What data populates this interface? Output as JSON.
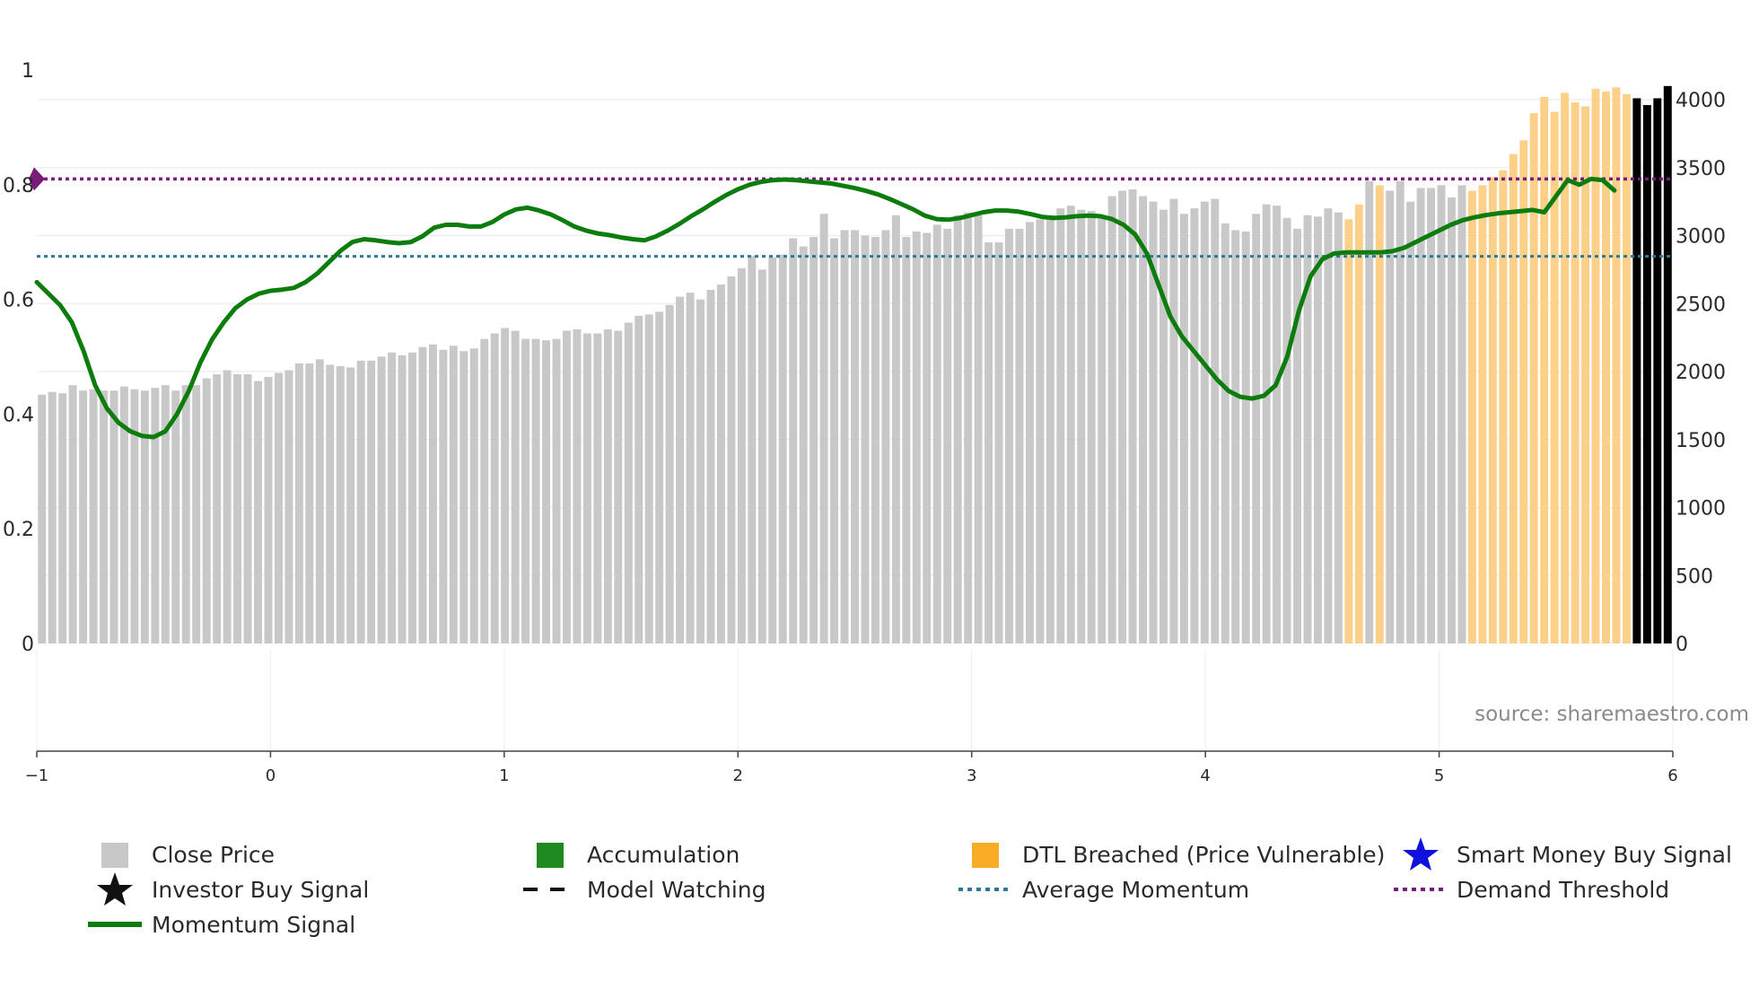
{
  "chart_data": {
    "type": "bar+line",
    "source_label": "source: sharemaestro.com",
    "left_axis": {
      "range": [
        0,
        1
      ],
      "ticks": [
        0,
        0.2,
        0.4,
        0.6,
        0.8,
        1
      ],
      "tick_labels": [
        "0",
        "0.2",
        "0.4",
        "0.6",
        "0.8",
        "1"
      ]
    },
    "right_axis": {
      "range": [
        0,
        4000
      ],
      "ticks": [
        0,
        500,
        1000,
        1500,
        2000,
        2500,
        3000,
        3500,
        4000
      ],
      "tick_labels": [
        "0",
        "500",
        "1000",
        "1500",
        "2000",
        "2500",
        "3000",
        "3500",
        "4000"
      ]
    },
    "x_axis": {
      "range": [
        -1,
        6
      ],
      "ticks": [
        -1,
        0,
        1,
        2,
        3,
        4,
        5,
        6
      ],
      "tick_labels": [
        "−1",
        "0",
        "1",
        "2",
        "3",
        "4",
        "5",
        "6"
      ]
    },
    "demand_threshold": 0.81,
    "average_momentum": 0.675,
    "close_price_start_index": 0,
    "close_price": [
      1830,
      1850,
      1840,
      1900,
      1860,
      1870,
      1860,
      1860,
      1890,
      1870,
      1860,
      1880,
      1900,
      1860,
      1900,
      1900,
      1950,
      1980,
      2010,
      1980,
      1980,
      1930,
      1960,
      1990,
      2010,
      2060,
      2060,
      2090,
      2050,
      2040,
      2030,
      2080,
      2080,
      2110,
      2140,
      2120,
      2140,
      2180,
      2200,
      2160,
      2190,
      2150,
      2170,
      2240,
      2280,
      2320,
      2300,
      2240,
      2240,
      2230,
      2240,
      2300,
      2310,
      2280,
      2280,
      2310,
      2300,
      2360,
      2410,
      2420,
      2440,
      2490,
      2550,
      2580,
      2530,
      2600,
      2640,
      2700,
      2760,
      2850,
      2750,
      2840,
      2860,
      2980,
      2920,
      2990,
      3160,
      2980,
      3040,
      3040,
      3000,
      2990,
      3040,
      3150,
      2990,
      3030,
      3020,
      3080,
      3050,
      3150,
      3170,
      3150,
      2950,
      2950,
      3050,
      3050,
      3100,
      3120,
      3150,
      3200,
      3220,
      3190,
      3180,
      3150,
      3290,
      3330,
      3340,
      3290,
      3250,
      3190,
      3270,
      3160,
      3200,
      3250,
      3270,
      3090,
      3040,
      3030,
      3160,
      3230,
      3220,
      3130,
      3050,
      3150,
      3140,
      3200,
      3170,
      3120,
      3230,
      3400,
      3370,
      3330,
      3400,
      3250,
      3350,
      3350,
      3370,
      3280,
      3370,
      3330,
      3370,
      3430,
      3480,
      3600,
      3700,
      3900,
      4020,
      3910,
      4050,
      3980,
      3950,
      4080,
      4060,
      4090,
      4040,
      4010,
      3960,
      4010,
      4100
    ],
    "close_price_colors": [
      "#c8c8c8",
      "#c8c8c8",
      "#c8c8c8",
      "#c8c8c8",
      "#c8c8c8",
      "#c8c8c8",
      "#c8c8c8",
      "#c8c8c8",
      "#c8c8c8",
      "#c8c8c8",
      "#c8c8c8",
      "#c8c8c8",
      "#c8c8c8",
      "#c8c8c8",
      "#c8c8c8",
      "#c8c8c8",
      "#c8c8c8",
      "#c8c8c8",
      "#c8c8c8",
      "#c8c8c8",
      "#c8c8c8",
      "#c8c8c8",
      "#c8c8c8",
      "#c8c8c8",
      "#c8c8c8",
      "#c8c8c8",
      "#c8c8c8",
      "#c8c8c8",
      "#c8c8c8",
      "#c8c8c8",
      "#c8c8c8",
      "#c8c8c8",
      "#c8c8c8",
      "#c8c8c8",
      "#c8c8c8",
      "#c8c8c8",
      "#c8c8c8",
      "#c8c8c8",
      "#c8c8c8",
      "#c8c8c8",
      "#c8c8c8",
      "#c8c8c8",
      "#c8c8c8",
      "#c8c8c8",
      "#c8c8c8",
      "#c8c8c8",
      "#c8c8c8",
      "#c8c8c8",
      "#c8c8c8",
      "#c8c8c8",
      "#c8c8c8",
      "#c8c8c8",
      "#c8c8c8",
      "#c8c8c8",
      "#c8c8c8",
      "#c8c8c8",
      "#c8c8c8",
      "#c8c8c8",
      "#c8c8c8",
      "#c8c8c8",
      "#c8c8c8",
      "#c8c8c8",
      "#c8c8c8",
      "#c8c8c8",
      "#c8c8c8",
      "#c8c8c8",
      "#c8c8c8",
      "#c8c8c8",
      "#c8c8c8",
      "#c8c8c8",
      "#c8c8c8",
      "#c8c8c8",
      "#c8c8c8",
      "#c8c8c8",
      "#c8c8c8",
      "#c8c8c8",
      "#c8c8c8",
      "#c8c8c8",
      "#c8c8c8",
      "#c8c8c8",
      "#c8c8c8",
      "#c8c8c8",
      "#c8c8c8",
      "#c8c8c8",
      "#c8c8c8",
      "#c8c8c8",
      "#c8c8c8",
      "#c8c8c8",
      "#c8c8c8",
      "#c8c8c8",
      "#c8c8c8",
      "#c8c8c8",
      "#c8c8c8",
      "#c8c8c8",
      "#c8c8c8",
      "#c8c8c8",
      "#c8c8c8",
      "#c8c8c8",
      "#c8c8c8",
      "#c8c8c8",
      "#c8c8c8",
      "#c8c8c8",
      "#c8c8c8",
      "#c8c8c8",
      "#c8c8c8",
      "#c8c8c8",
      "#c8c8c8",
      "#c8c8c8",
      "#c8c8c8",
      "#c8c8c8",
      "#c8c8c8",
      "#c8c8c8",
      "#c8c8c8",
      "#c8c8c8",
      "#c8c8c8",
      "#c8c8c8",
      "#c8c8c8",
      "#c8c8c8",
      "#c8c8c8",
      "#c8c8c8",
      "#c8c8c8",
      "#c8c8c8",
      "#c8c8c8",
      "#c8c8c8",
      "#c8c8c8",
      "#c8c8c8",
      "#c8c8c8",
      "#fdd08a",
      "#fdd08a",
      "#c8c8c8",
      "#fdd08a",
      "#c8c8c8",
      "#c8c8c8",
      "#c8c8c8",
      "#c8c8c8",
      "#c8c8c8",
      "#c8c8c8",
      "#c8c8c8",
      "#c8c8c8",
      "#fdd08a",
      "#fdd08a",
      "#fdd08a",
      "#fdd08a",
      "#fdd08a",
      "#fdd08a",
      "#fdd08a",
      "#fdd08a",
      "#fdd08a",
      "#fdd08a",
      "#fdd08a",
      "#fdd08a",
      "#fdd08a",
      "#fdd08a",
      "#fdd08a",
      "#fdd08a"
    ],
    "momentum_signal": [
      [
        -1.0,
        0.63
      ],
      [
        -0.95,
        0.61
      ],
      [
        -0.9,
        0.59
      ],
      [
        -0.85,
        0.56
      ],
      [
        -0.8,
        0.51
      ],
      [
        -0.75,
        0.45
      ],
      [
        -0.7,
        0.41
      ],
      [
        -0.65,
        0.385
      ],
      [
        -0.6,
        0.37
      ],
      [
        -0.55,
        0.362
      ],
      [
        -0.5,
        0.36
      ],
      [
        -0.45,
        0.37
      ],
      [
        -0.4,
        0.4
      ],
      [
        -0.35,
        0.44
      ],
      [
        -0.3,
        0.49
      ],
      [
        -0.25,
        0.53
      ],
      [
        -0.2,
        0.56
      ],
      [
        -0.15,
        0.585
      ],
      [
        -0.1,
        0.6
      ],
      [
        -0.05,
        0.61
      ],
      [
        0.0,
        0.615
      ],
      [
        0.05,
        0.617
      ],
      [
        0.1,
        0.62
      ],
      [
        0.15,
        0.63
      ],
      [
        0.2,
        0.645
      ],
      [
        0.25,
        0.665
      ],
      [
        0.3,
        0.685
      ],
      [
        0.35,
        0.7
      ],
      [
        0.4,
        0.705
      ],
      [
        0.45,
        0.703
      ],
      [
        0.5,
        0.7
      ],
      [
        0.55,
        0.698
      ],
      [
        0.6,
        0.7
      ],
      [
        0.65,
        0.71
      ],
      [
        0.7,
        0.725
      ],
      [
        0.75,
        0.73
      ],
      [
        0.8,
        0.73
      ],
      [
        0.85,
        0.727
      ],
      [
        0.9,
        0.727
      ],
      [
        0.95,
        0.735
      ],
      [
        1.0,
        0.748
      ],
      [
        1.05,
        0.757
      ],
      [
        1.1,
        0.76
      ],
      [
        1.15,
        0.755
      ],
      [
        1.2,
        0.748
      ],
      [
        1.25,
        0.738
      ],
      [
        1.3,
        0.727
      ],
      [
        1.35,
        0.72
      ],
      [
        1.4,
        0.715
      ],
      [
        1.45,
        0.712
      ],
      [
        1.5,
        0.708
      ],
      [
        1.55,
        0.705
      ],
      [
        1.6,
        0.703
      ],
      [
        1.65,
        0.71
      ],
      [
        1.7,
        0.72
      ],
      [
        1.75,
        0.732
      ],
      [
        1.8,
        0.745
      ],
      [
        1.85,
        0.757
      ],
      [
        1.9,
        0.77
      ],
      [
        1.95,
        0.782
      ],
      [
        2.0,
        0.792
      ],
      [
        2.05,
        0.8
      ],
      [
        2.1,
        0.805
      ],
      [
        2.15,
        0.808
      ],
      [
        2.2,
        0.809
      ],
      [
        2.25,
        0.808
      ],
      [
        2.3,
        0.806
      ],
      [
        2.35,
        0.804
      ],
      [
        2.4,
        0.802
      ],
      [
        2.45,
        0.798
      ],
      [
        2.5,
        0.794
      ],
      [
        2.55,
        0.789
      ],
      [
        2.6,
        0.783
      ],
      [
        2.65,
        0.775
      ],
      [
        2.7,
        0.766
      ],
      [
        2.75,
        0.757
      ],
      [
        2.8,
        0.746
      ],
      [
        2.85,
        0.74
      ],
      [
        2.9,
        0.739
      ],
      [
        2.95,
        0.742
      ],
      [
        3.0,
        0.747
      ],
      [
        3.05,
        0.752
      ],
      [
        3.1,
        0.755
      ],
      [
        3.15,
        0.755
      ],
      [
        3.2,
        0.753
      ],
      [
        3.25,
        0.749
      ],
      [
        3.3,
        0.744
      ],
      [
        3.35,
        0.742
      ],
      [
        3.4,
        0.743
      ],
      [
        3.45,
        0.745
      ],
      [
        3.5,
        0.746
      ],
      [
        3.55,
        0.745
      ],
      [
        3.6,
        0.74
      ],
      [
        3.65,
        0.73
      ],
      [
        3.7,
        0.713
      ],
      [
        3.75,
        0.68
      ],
      [
        3.8,
        0.625
      ],
      [
        3.85,
        0.57
      ],
      [
        3.9,
        0.535
      ],
      [
        3.95,
        0.51
      ],
      [
        4.0,
        0.485
      ],
      [
        4.05,
        0.46
      ],
      [
        4.1,
        0.44
      ],
      [
        4.15,
        0.43
      ],
      [
        4.2,
        0.427
      ],
      [
        4.25,
        0.432
      ],
      [
        4.3,
        0.45
      ],
      [
        4.35,
        0.5
      ],
      [
        4.4,
        0.58
      ],
      [
        4.45,
        0.64
      ],
      [
        4.5,
        0.67
      ],
      [
        4.55,
        0.68
      ],
      [
        4.6,
        0.682
      ],
      [
        4.65,
        0.682
      ],
      [
        4.7,
        0.682
      ],
      [
        4.75,
        0.682
      ],
      [
        4.8,
        0.684
      ],
      [
        4.85,
        0.69
      ],
      [
        4.9,
        0.7
      ],
      [
        4.95,
        0.71
      ],
      [
        5.0,
        0.72
      ],
      [
        5.05,
        0.73
      ],
      [
        5.1,
        0.738
      ],
      [
        5.15,
        0.743
      ],
      [
        5.2,
        0.747
      ],
      [
        5.25,
        0.75
      ],
      [
        5.3,
        0.752
      ],
      [
        5.35,
        0.754
      ],
      [
        5.4,
        0.756
      ],
      [
        5.45,
        0.752
      ],
      [
        5.5,
        0.78
      ],
      [
        5.55,
        0.808
      ],
      [
        5.6,
        0.8
      ],
      [
        5.65,
        0.81
      ],
      [
        5.7,
        0.808
      ],
      [
        5.75,
        0.79
      ]
    ],
    "purple_marker_value": 0.81
  },
  "legend": {
    "close_price": "Close Price",
    "accumulation": "Accumulation",
    "dtl_breached": "DTL Breached (Price Vulnerable)",
    "smart_money": "Smart Money Buy Signal",
    "investor_buy": "Investor Buy Signal",
    "model_watching": "Model Watching",
    "average_momentum": "Average Momentum",
    "demand_threshold": "Demand Threshold",
    "momentum_signal": "Momentum Signal"
  },
  "colors": {
    "close_price": "#c8c8c8",
    "accumulation": "#1f8a1f",
    "dtl_breached": "#fdd08a",
    "dtl_legend": "#f9ad26",
    "momentum": "#0c7d0c",
    "average_momentum": "#2b7a9a",
    "demand_threshold": "#7a1a7a",
    "smart_money": "#1111dd",
    "investor_buy": "#111111"
  }
}
